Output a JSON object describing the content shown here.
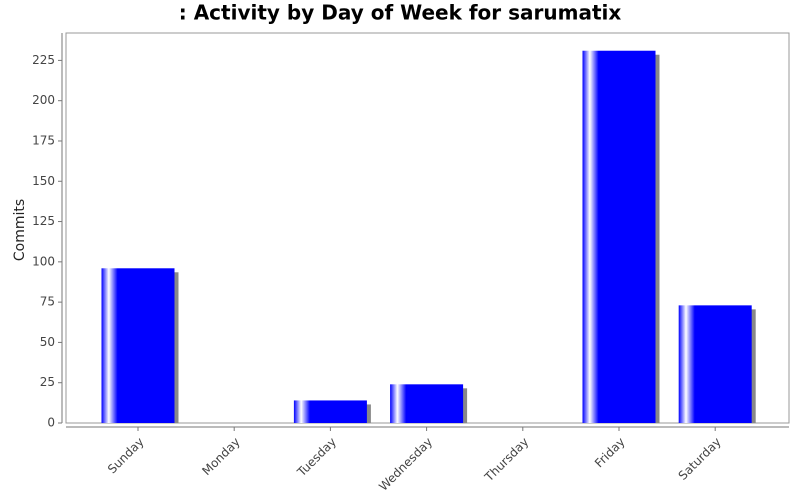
{
  "chart_data": {
    "type": "bar",
    "title": ": Activity by Day of Week for sarumatix",
    "y_label": "Commits",
    "categories": [
      "Sunday",
      "Monday",
      "Tuesday",
      "Wednesday",
      "Thursday",
      "Friday",
      "Saturday"
    ],
    "values": [
      96,
      0,
      14,
      24,
      0,
      231,
      73
    ],
    "color": "#0000ff",
    "ylim": [
      0,
      242
    ],
    "yticks": [
      0,
      25,
      50,
      75,
      100,
      125,
      150,
      175,
      200,
      225
    ],
    "grid": false
  }
}
